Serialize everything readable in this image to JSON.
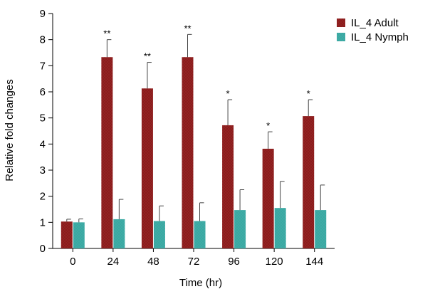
{
  "chart_data": {
    "type": "bar",
    "xlabel": "Time (hr)",
    "ylabel": "Relative fold changes",
    "ylim": [
      0,
      9
    ],
    "yticks": [
      0,
      1,
      2,
      3,
      4,
      5,
      6,
      7,
      8,
      9
    ],
    "categories": [
      "0",
      "24",
      "48",
      "72",
      "96",
      "120",
      "144"
    ],
    "series": [
      {
        "name": "IL_4 Adult",
        "color": "#8b1c1c",
        "values": [
          1.03,
          7.33,
          6.13,
          7.33,
          4.72,
          3.82,
          5.07
        ],
        "error_upper": [
          1.12,
          8.0,
          7.13,
          8.2,
          5.7,
          4.47,
          5.7
        ]
      },
      {
        "name": "IL_4 Nymph",
        "color": "#3aa8a2",
        "values": [
          1.0,
          1.12,
          1.05,
          1.05,
          1.47,
          1.55,
          1.47
        ],
        "error_upper": [
          1.13,
          1.88,
          1.63,
          1.75,
          2.25,
          2.57,
          2.43
        ]
      }
    ],
    "significance": [
      "",
      "**",
      "**",
      "**",
      "*",
      "*",
      "*"
    ],
    "legend": "top-right",
    "grid": false
  }
}
